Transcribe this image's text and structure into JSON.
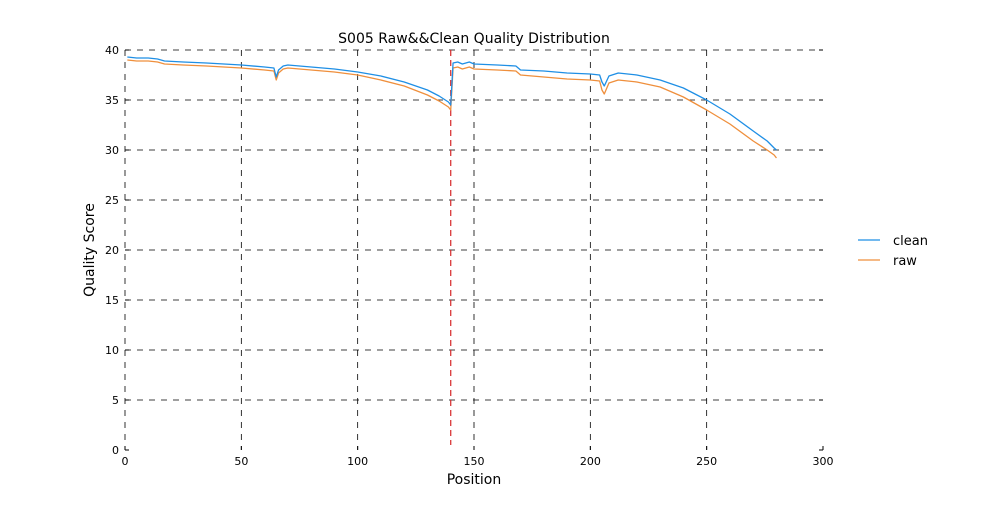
{
  "chart_data": {
    "type": "line",
    "title": "S005 Raw&&Clean Quality Distribution",
    "xlabel": "Position",
    "ylabel": "Quality Score",
    "xlim": [
      0,
      300
    ],
    "ylim": [
      0,
      40
    ],
    "xticks": [
      0,
      50,
      100,
      150,
      200,
      250,
      300
    ],
    "yticks": [
      0,
      5,
      10,
      15,
      20,
      25,
      30,
      35,
      40
    ],
    "grid": true,
    "legend_position": "right",
    "vline": {
      "x": 140,
      "color": "#d62728",
      "style": "dashed"
    },
    "series": [
      {
        "name": "clean",
        "color": "#1f8fe5",
        "points": [
          [
            1,
            39.3
          ],
          [
            5,
            39.2
          ],
          [
            10,
            39.2
          ],
          [
            14,
            39.1
          ],
          [
            17,
            38.9
          ],
          [
            25,
            38.8
          ],
          [
            35,
            38.7
          ],
          [
            50,
            38.5
          ],
          [
            60,
            38.3
          ],
          [
            64,
            38.2
          ],
          [
            65,
            37.3
          ],
          [
            66,
            38.0
          ],
          [
            68,
            38.4
          ],
          [
            70,
            38.5
          ],
          [
            80,
            38.3
          ],
          [
            90,
            38.1
          ],
          [
            100,
            37.8
          ],
          [
            110,
            37.4
          ],
          [
            120,
            36.8
          ],
          [
            130,
            36.0
          ],
          [
            135,
            35.4
          ],
          [
            139,
            34.8
          ],
          [
            140,
            34.5
          ],
          [
            141,
            38.7
          ],
          [
            143,
            38.8
          ],
          [
            145,
            38.6
          ],
          [
            148,
            38.8
          ],
          [
            150,
            38.6
          ],
          [
            160,
            38.5
          ],
          [
            168,
            38.4
          ],
          [
            170,
            38.0
          ],
          [
            180,
            37.9
          ],
          [
            190,
            37.7
          ],
          [
            200,
            37.6
          ],
          [
            204,
            37.5
          ],
          [
            205,
            36.8
          ],
          [
            206,
            36.4
          ],
          [
            208,
            37.4
          ],
          [
            212,
            37.7
          ],
          [
            220,
            37.5
          ],
          [
            230,
            37.0
          ],
          [
            240,
            36.2
          ],
          [
            250,
            35.0
          ],
          [
            260,
            33.6
          ],
          [
            270,
            31.9
          ],
          [
            276,
            30.9
          ],
          [
            279,
            30.2
          ],
          [
            280,
            30.0
          ]
        ]
      },
      {
        "name": "raw",
        "color": "#ef8f3c",
        "points": [
          [
            1,
            39.0
          ],
          [
            5,
            38.9
          ],
          [
            10,
            38.9
          ],
          [
            14,
            38.8
          ],
          [
            17,
            38.6
          ],
          [
            25,
            38.5
          ],
          [
            35,
            38.4
          ],
          [
            50,
            38.2
          ],
          [
            60,
            38.0
          ],
          [
            64,
            37.9
          ],
          [
            65,
            37.0
          ],
          [
            66,
            37.7
          ],
          [
            68,
            38.1
          ],
          [
            70,
            38.2
          ],
          [
            80,
            38.0
          ],
          [
            90,
            37.8
          ],
          [
            100,
            37.5
          ],
          [
            110,
            37.0
          ],
          [
            120,
            36.4
          ],
          [
            130,
            35.5
          ],
          [
            135,
            34.9
          ],
          [
            139,
            34.3
          ],
          [
            140,
            34.0
          ],
          [
            141,
            38.2
          ],
          [
            143,
            38.3
          ],
          [
            145,
            38.1
          ],
          [
            148,
            38.3
          ],
          [
            150,
            38.1
          ],
          [
            160,
            38.0
          ],
          [
            168,
            37.9
          ],
          [
            170,
            37.5
          ],
          [
            180,
            37.3
          ],
          [
            190,
            37.1
          ],
          [
            200,
            37.0
          ],
          [
            204,
            36.9
          ],
          [
            205,
            36.0
          ],
          [
            206,
            35.6
          ],
          [
            208,
            36.7
          ],
          [
            212,
            37.0
          ],
          [
            220,
            36.8
          ],
          [
            230,
            36.3
          ],
          [
            240,
            35.3
          ],
          [
            250,
            34.0
          ],
          [
            260,
            32.6
          ],
          [
            270,
            30.9
          ],
          [
            276,
            30.0
          ],
          [
            279,
            29.5
          ],
          [
            280,
            29.2
          ]
        ]
      }
    ]
  }
}
